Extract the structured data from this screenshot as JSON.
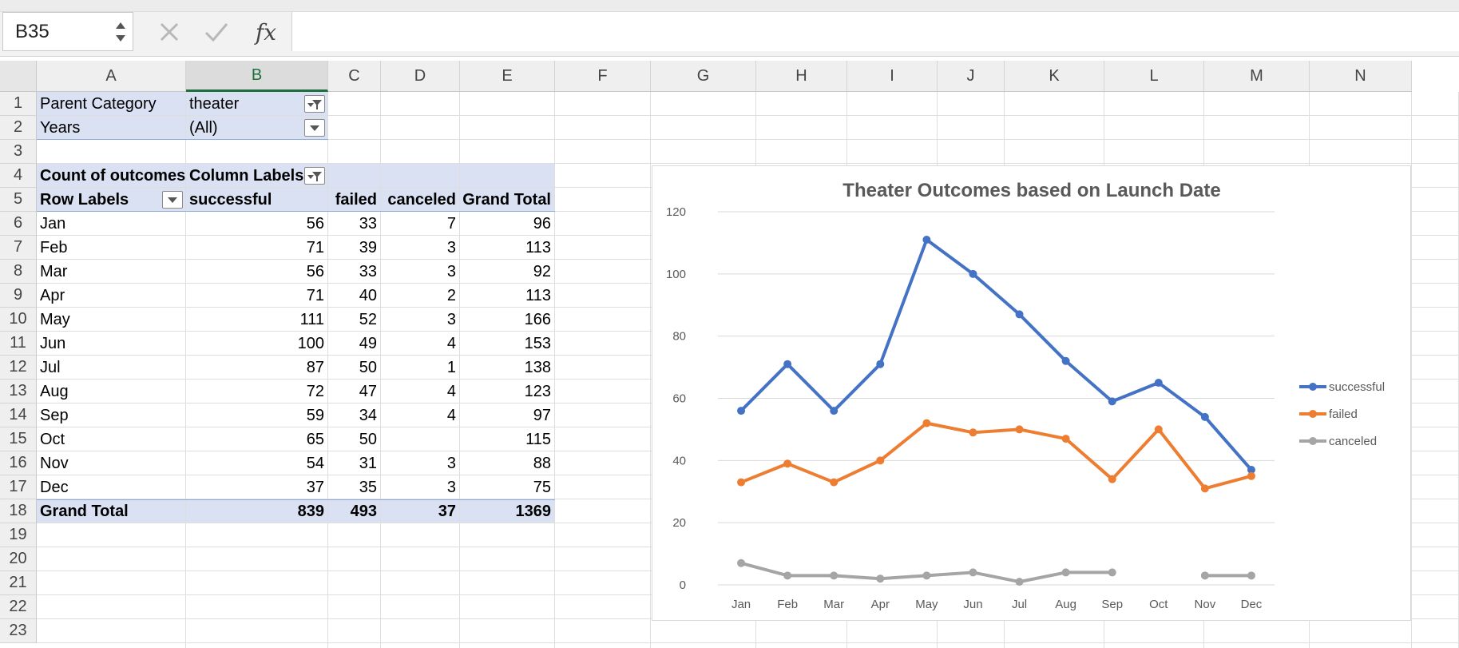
{
  "formula_bar": {
    "name_box": "B35",
    "cancel_icon": "x-icon",
    "confirm_icon": "check-icon",
    "fx_label": "fx",
    "formula": ""
  },
  "columns": [
    "A",
    "B",
    "C",
    "D",
    "E",
    "F",
    "G",
    "H",
    "I",
    "J",
    "K",
    "L",
    "M",
    "N"
  ],
  "selected_column": "B",
  "rows": [
    "1",
    "2",
    "3",
    "4",
    "5",
    "6",
    "7",
    "8",
    "9",
    "10",
    "11",
    "12",
    "13",
    "14",
    "15",
    "16",
    "17",
    "18",
    "19",
    "20",
    "21",
    "22",
    "23"
  ],
  "pivot": {
    "filters": [
      {
        "label": "Parent Category",
        "value": "theater"
      },
      {
        "label": "Years",
        "value": "(All)"
      }
    ],
    "count_label": "Count of outcomes",
    "column_labels": "Column Labels",
    "row_labels": "Row Labels",
    "headers": [
      "successful",
      "failed",
      "canceled",
      "Grand Total"
    ],
    "rows": [
      {
        "label": "Jan",
        "successful": "56",
        "failed": "33",
        "canceled": "7",
        "total": "96"
      },
      {
        "label": "Feb",
        "successful": "71",
        "failed": "39",
        "canceled": "3",
        "total": "113"
      },
      {
        "label": "Mar",
        "successful": "56",
        "failed": "33",
        "canceled": "3",
        "total": "92"
      },
      {
        "label": "Apr",
        "successful": "71",
        "failed": "40",
        "canceled": "2",
        "total": "113"
      },
      {
        "label": "May",
        "successful": "111",
        "failed": "52",
        "canceled": "3",
        "total": "166"
      },
      {
        "label": "Jun",
        "successful": "100",
        "failed": "49",
        "canceled": "4",
        "total": "153"
      },
      {
        "label": "Jul",
        "successful": "87",
        "failed": "50",
        "canceled": "1",
        "total": "138"
      },
      {
        "label": "Aug",
        "successful": "72",
        "failed": "47",
        "canceled": "4",
        "total": "123"
      },
      {
        "label": "Sep",
        "successful": "59",
        "failed": "34",
        "canceled": "4",
        "total": "97"
      },
      {
        "label": "Oct",
        "successful": "65",
        "failed": "50",
        "canceled": "",
        "total": "115"
      },
      {
        "label": "Nov",
        "successful": "54",
        "failed": "31",
        "canceled": "3",
        "total": "88"
      },
      {
        "label": "Dec",
        "successful": "37",
        "failed": "35",
        "canceled": "3",
        "total": "75"
      }
    ],
    "grand_total": {
      "label": "Grand Total",
      "successful": "839",
      "failed": "493",
      "canceled": "37",
      "total": "1369"
    }
  },
  "chart_data": {
    "type": "line",
    "title": "Theater Outcomes based on Launch Date",
    "categories": [
      "Jan",
      "Feb",
      "Mar",
      "Apr",
      "May",
      "Jun",
      "Jul",
      "Aug",
      "Sep",
      "Oct",
      "Nov",
      "Dec"
    ],
    "series": [
      {
        "name": "successful",
        "color": "#4472c4",
        "values": [
          56,
          71,
          56,
          71,
          111,
          100,
          87,
          72,
          59,
          65,
          54,
          37
        ]
      },
      {
        "name": "failed",
        "color": "#ed7d31",
        "values": [
          33,
          39,
          33,
          40,
          52,
          49,
          50,
          47,
          34,
          50,
          31,
          35
        ]
      },
      {
        "name": "canceled",
        "color": "#a5a5a5",
        "values": [
          7,
          3,
          3,
          2,
          3,
          4,
          1,
          4,
          4,
          null,
          3,
          3
        ]
      }
    ],
    "ylim": [
      0,
      120
    ],
    "yticks": [
      0,
      20,
      40,
      60,
      80,
      100,
      120
    ],
    "grid": true,
    "legend": "right",
    "xlabel": "",
    "ylabel": ""
  }
}
